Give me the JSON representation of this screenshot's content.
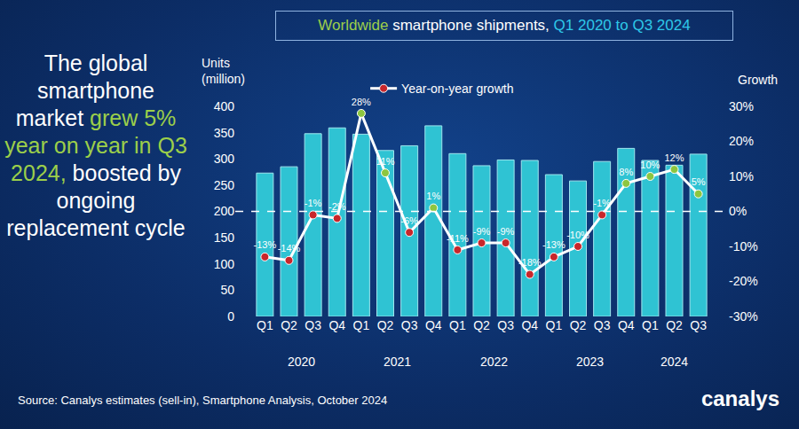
{
  "chart_data": {
    "type": "bar",
    "title_parts": [
      {
        "text": "The global smartphone market ",
        "color": "#ffffff"
      },
      {
        "text": "grew 5% year on year in Q3 2024,",
        "color": "#9ccf4a"
      },
      {
        "text": " boosted by ongoing replacement cycle",
        "color": "#ffffff"
      }
    ],
    "header_parts": [
      {
        "text": "Worldwide",
        "color": "#9ccf4a"
      },
      {
        "text": " smartphone shipments, ",
        "color": "#ffffff"
      },
      {
        "text": "Q1 2020 to Q3 2024",
        "color": "#2ec8e8"
      }
    ],
    "categories": [
      "Q1",
      "Q2",
      "Q3",
      "Q4",
      "Q1",
      "Q2",
      "Q3",
      "Q4",
      "Q1",
      "Q2",
      "Q3",
      "Q4",
      "Q1",
      "Q2",
      "Q3",
      "Q4",
      "Q1",
      "Q2",
      "Q3"
    ],
    "years": [
      "2020",
      "2020",
      "2020",
      "2020",
      "2021",
      "2021",
      "2021",
      "2021",
      "2022",
      "2022",
      "2022",
      "2022",
      "2023",
      "2023",
      "2023",
      "2023",
      "2024",
      "2024",
      "2024"
    ],
    "ylabel_lines": [
      "Units",
      "(million)"
    ],
    "y2label": "Growth",
    "ylim": [
      0,
      400
    ],
    "yticks": [
      0,
      50,
      100,
      150,
      200,
      250,
      300,
      350,
      400
    ],
    "y2lim": [
      -30,
      30
    ],
    "y2ticks": [
      {
        "value": -30,
        "label": "-30%"
      },
      {
        "value": -20,
        "label": "-20%"
      },
      {
        "value": -10,
        "label": "-10%"
      },
      {
        "value": 0,
        "label": "0%"
      },
      {
        "value": 10,
        "label": "10%"
      },
      {
        "value": 20,
        "label": "20%"
      },
      {
        "value": 30,
        "label": "30%"
      }
    ],
    "grid": false,
    "legend": "top",
    "reference_lines": [
      {
        "axis": "y2",
        "value": 0,
        "line_style": "dash"
      }
    ],
    "series": [
      {
        "type": "bar",
        "color": "#2fc3d3",
        "values": [
          273,
          285,
          348,
          359,
          347,
          316,
          325,
          363,
          310,
          287,
          298,
          297,
          270,
          258,
          295,
          320,
          297,
          288,
          309
        ]
      },
      {
        "name": "Year-on-year growth",
        "type": "line",
        "axis": "y2",
        "color": "#ffffff",
        "marker": "circle",
        "data_labels": true,
        "colors": [
          "#c8262b",
          "#c8262b",
          "#c8262b",
          "#c8262b",
          "#8dc63f",
          "#8dc63f",
          "#c8262b",
          "#8dc63f",
          "#c8262b",
          "#c8262b",
          "#c8262b",
          "#c8262b",
          "#c8262b",
          "#c8262b",
          "#c8262b",
          "#8dc63f",
          "#8dc63f",
          "#8dc63f",
          "#8dc63f"
        ],
        "values": [
          -13,
          -14,
          -1,
          -2,
          28,
          11,
          -6,
          1,
          -11,
          -9,
          -9,
          -18,
          -13,
          -10,
          -1,
          8,
          10,
          12,
          5
        ],
        "value_labels": [
          "-13%",
          "-14%",
          "-1%",
          "-2%",
          "28%",
          "11%",
          "-6%",
          "1%",
          "-11%",
          "-9%",
          "-9%",
          "-18%",
          "-13%",
          "-10%",
          "-1%",
          "8%",
          "10%",
          "12%",
          "5%"
        ]
      }
    ],
    "source": "Source: Canalys estimates (sell-in), Smartphone Analysis, October 2024",
    "logo": "canalys"
  }
}
